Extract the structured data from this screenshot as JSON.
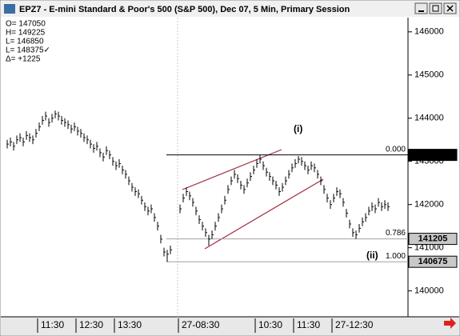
{
  "window_title": "EPZ7 - E-mini Standard & Poor's 500 (S&P 500), Dec 07, 5 Min, Primary Session",
  "chart_data": {
    "type": "hlc",
    "info": [
      "O= 147050",
      "H= 149225",
      "L= 146850",
      "L= 148375✓",
      "Δ=  +1225"
    ],
    "annotations": [
      "(i)",
      "(ii)"
    ],
    "color": "#000000",
    "ylim": [
      139400,
      146330
    ],
    "yticks": [
      140000,
      141000,
      142000,
      143000,
      144000,
      145000,
      146000
    ],
    "levels": [
      {
        "value": 143150,
        "label": "0.000",
        "color": "#000000"
      },
      {
        "value": 141205,
        "label": "0.786",
        "color": "#a0a0a0"
      },
      {
        "value": 140675,
        "label": "1.000",
        "color": "#a0a0a0"
      }
    ],
    "categories": [
      null,
      null,
      null,
      null,
      null,
      null,
      null,
      null,
      null,
      null,
      "11:30",
      null,
      null,
      null,
      null,
      null,
      null,
      null,
      null,
      null,
      null,
      null,
      "12:30",
      null,
      null,
      null,
      null,
      null,
      null,
      null,
      null,
      null,
      null,
      null,
      "13:30",
      null,
      null,
      null,
      null,
      null,
      null,
      null,
      null,
      null,
      null,
      null,
      null,
      null,
      null,
      null,
      null,
      null,
      "27-08:30",
      null,
      null,
      null,
      null,
      null,
      null,
      null,
      null,
      null,
      null,
      null,
      null,
      null,
      null,
      null,
      null,
      null,
      null,
      null,
      null,
      null,
      null,
      null,
      "10:30",
      null,
      null,
      null,
      null,
      null,
      null,
      null,
      null,
      null,
      null,
      null,
      "11:30",
      null,
      null,
      null,
      null,
      null,
      null,
      null,
      null,
      null,
      null,
      null,
      "27-12:30",
      null,
      null,
      null,
      null,
      null,
      null,
      null,
      null,
      null,
      null,
      null,
      null,
      null,
      null,
      null,
      null,
      null
    ],
    "high": [
      143500,
      143550,
      143450,
      143600,
      143650,
      143550,
      143700,
      143650,
      143600,
      143750,
      143900,
      144050,
      144150,
      144000,
      144100,
      144175,
      144150,
      144050,
      144000,
      143950,
      143850,
      143900,
      143800,
      143750,
      143650,
      143600,
      143500,
      143400,
      143450,
      143300,
      143200,
      143350,
      143250,
      143100,
      143000,
      143050,
      142900,
      142800,
      142650,
      142500,
      142400,
      142350,
      142200,
      142050,
      141950,
      142000,
      141800,
      141600,
      141300,
      141000,
      140950,
      141050,
      142000,
      142250,
      142400,
      142300,
      142150,
      141950,
      141750,
      141600,
      141450,
      141300,
      141400,
      141600,
      141800,
      142000,
      142200,
      142450,
      142650,
      142800,
      142700,
      142550,
      142450,
      142600,
      142750,
      142900,
      143050,
      143150,
      143000,
      142850,
      142750,
      142650,
      142550,
      142400,
      142500,
      142650,
      142800,
      142950,
      143050,
      143125,
      143100,
      143000,
      142900,
      143000,
      142950,
      142800,
      142650,
      142450,
      142250,
      142100,
      142250,
      142400,
      142350,
      142150,
      141900,
      141650,
      141450,
      141400,
      141550,
      141700,
      141800,
      141950,
      142050,
      142000,
      142150,
      142050,
      142100,
      142050
    ],
    "low": [
      143300,
      143350,
      143250,
      143400,
      143450,
      143350,
      143500,
      143450,
      143400,
      143550,
      143700,
      143850,
      143950,
      143800,
      143900,
      144000,
      143950,
      143850,
      143800,
      143750,
      143650,
      143700,
      143600,
      143550,
      143450,
      143400,
      143300,
      143200,
      143250,
      143100,
      143000,
      143150,
      143050,
      142900,
      142800,
      142850,
      142700,
      142600,
      142450,
      142300,
      142200,
      142150,
      142000,
      141850,
      141750,
      141800,
      141600,
      141400,
      141100,
      140800,
      140675,
      140850,
      141800,
      142050,
      142200,
      142100,
      141950,
      141750,
      141550,
      141400,
      141250,
      141050,
      141200,
      141400,
      141600,
      141800,
      142000,
      142250,
      142450,
      142600,
      142500,
      142350,
      142250,
      142400,
      142550,
      142700,
      142850,
      142950,
      142800,
      142650,
      142550,
      142450,
      142350,
      142200,
      142300,
      142450,
      142600,
      142750,
      142850,
      142950,
      142900,
      142800,
      142700,
      142800,
      142750,
      142600,
      142450,
      142250,
      142050,
      141900,
      142050,
      142200,
      142150,
      141950,
      141700,
      141450,
      141250,
      141205,
      141350,
      141500,
      141600,
      141750,
      141850,
      141800,
      141950,
      141850,
      141900,
      141850
    ],
    "close": [
      143400,
      143450,
      143350,
      143500,
      143550,
      143450,
      143600,
      143550,
      143500,
      143650,
      143800,
      143950,
      144050,
      143900,
      144000,
      144100,
      144050,
      143950,
      143900,
      143850,
      143750,
      143800,
      143700,
      143650,
      143550,
      143500,
      143400,
      143300,
      143350,
      143200,
      143100,
      143250,
      143150,
      143000,
      142900,
      142950,
      142800,
      142700,
      142550,
      142400,
      142300,
      142250,
      142100,
      141950,
      141850,
      141900,
      141700,
      141500,
      141200,
      140900,
      140850,
      140950,
      141900,
      142150,
      142300,
      142200,
      142050,
      141850,
      141650,
      141500,
      141350,
      141200,
      141300,
      141500,
      141700,
      141900,
      142100,
      142350,
      142550,
      142700,
      142600,
      142450,
      142350,
      142500,
      142650,
      142800,
      142950,
      143050,
      142900,
      142750,
      142650,
      142550,
      142450,
      142300,
      142400,
      142550,
      142700,
      142850,
      142950,
      143050,
      143000,
      142900,
      142800,
      142900,
      142850,
      142700,
      142550,
      142350,
      142150,
      142000,
      142150,
      142300,
      142250,
      142050,
      141800,
      141550,
      141350,
      141300,
      141450,
      141600,
      141700,
      141850,
      141950,
      141900,
      142050,
      141950,
      142000,
      141950
    ]
  }
}
